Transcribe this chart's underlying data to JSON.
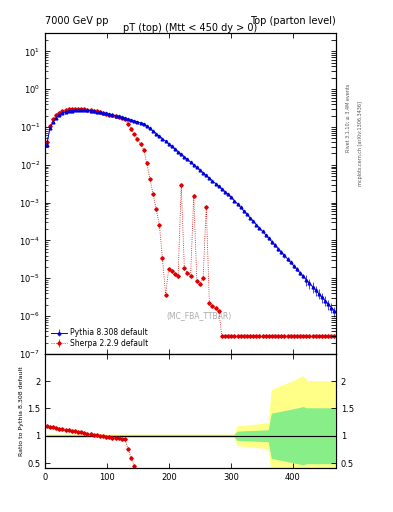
{
  "title_left": "7000 GeV pp",
  "title_right": "Top (parton level)",
  "plot_title": "pT (top) (Mtt < 450 dy > 0)",
  "watermark": "(MC_FBA_TTBAR)",
  "right_label_top": "Rivet 3.1.10; ≥ 3.4M events",
  "right_label_bottom": "mcplots.cern.ch [arXiv:1306.3436]",
  "ylabel_ratio": "Ratio to Pythia 8.308 default",
  "xlim": [
    0,
    470
  ],
  "ylim_main": [
    1e-07,
    30
  ],
  "ylim_ratio": [
    0.4,
    2.5
  ],
  "ratio_yticks": [
    0.5,
    1.0,
    1.5,
    2.0
  ],
  "legend_pythia": "Pythia 8.308 default",
  "legend_sherpa": "Sherpa 2.2.9 default",
  "blue_color": "#0000dd",
  "red_color": "#dd0000",
  "green_band_color": "#88ee88",
  "yellow_band_color": "#ffff88",
  "bg_color": "#ffffff"
}
